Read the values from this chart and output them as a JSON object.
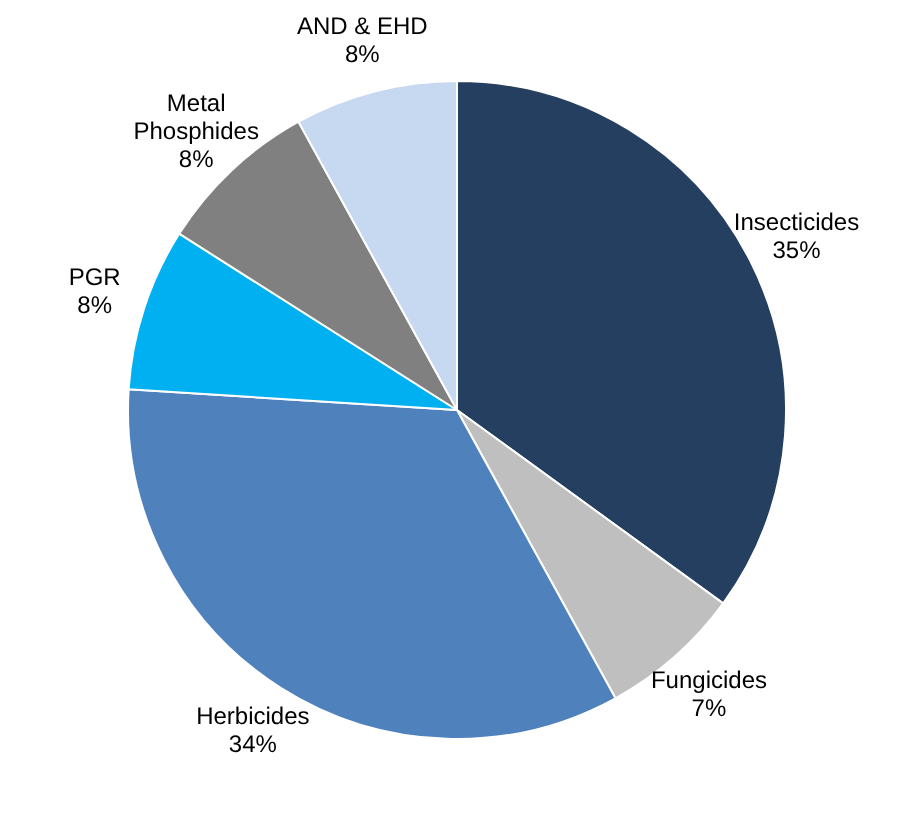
{
  "chart_data": {
    "type": "pie",
    "categories": [
      "Insecticides",
      "Fungicides",
      "Herbicides",
      "PGR",
      "Metal Phosphides",
      "AND & EHD"
    ],
    "values": [
      35,
      7,
      34,
      8,
      8,
      8
    ],
    "colors": [
      "#243f60",
      "#bfbfbf",
      "#4f81bd",
      "#00b0f0",
      "#808080",
      "#c6d9f1"
    ],
    "value_labels": [
      "35%",
      "7%",
      "34%",
      "8%",
      "8%",
      "8%"
    ],
    "legend": false
  }
}
